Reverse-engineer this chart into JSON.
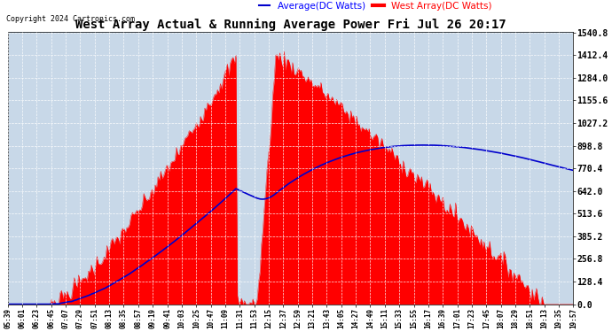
{
  "title": "West Array Actual & Running Average Power Fri Jul 26 20:17",
  "copyright": "Copyright 2024 Cartronics.com",
  "legend_avg": "Average(DC Watts)",
  "legend_west": "West Array(DC Watts)",
  "ylabel_ticks": [
    0.0,
    128.4,
    256.8,
    385.2,
    513.6,
    642.0,
    770.4,
    898.8,
    1027.2,
    1155.6,
    1284.0,
    1412.4,
    1540.8
  ],
  "ymax": 1540.8,
  "ymin": 0.0,
  "plot_bg_color": "#c8d8e8",
  "red_color": "#ff0000",
  "blue_color": "#0000cc",
  "xtick_labels": [
    "05:39",
    "06:01",
    "06:23",
    "06:45",
    "07:07",
    "07:29",
    "07:51",
    "08:13",
    "08:35",
    "08:57",
    "09:19",
    "09:41",
    "10:03",
    "10:25",
    "10:47",
    "11:09",
    "11:31",
    "11:53",
    "12:15",
    "12:37",
    "12:59",
    "13:21",
    "13:43",
    "14:05",
    "14:27",
    "14:49",
    "15:11",
    "15:33",
    "15:55",
    "16:17",
    "16:39",
    "17:01",
    "17:23",
    "17:45",
    "18:07",
    "18:29",
    "18:51",
    "19:13",
    "19:35",
    "19:57"
  ]
}
